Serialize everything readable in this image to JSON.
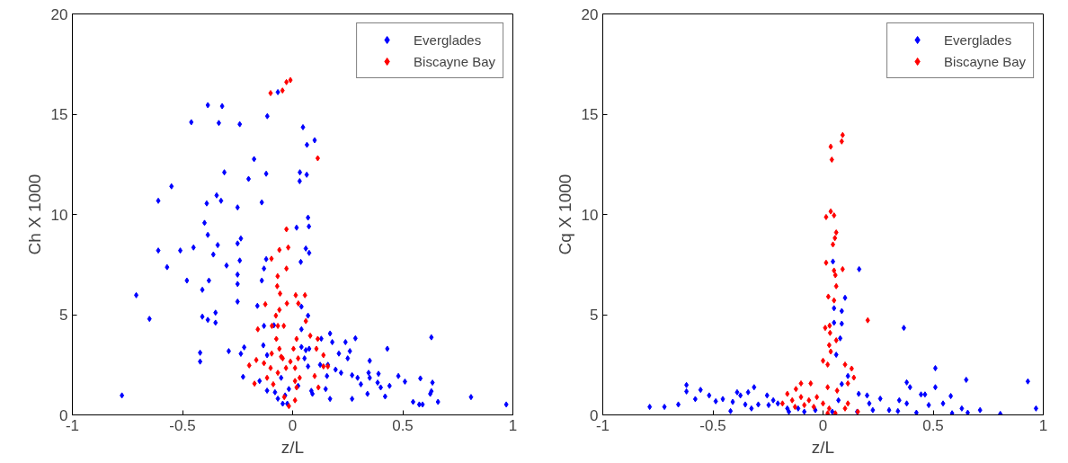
{
  "chart_data": [
    {
      "type": "scatter",
      "xlabel": "z/L",
      "ylabel": "Ch X 1000",
      "xlim": [
        -1,
        1
      ],
      "ylim": [
        0,
        20
      ],
      "xticks": [
        -1,
        -0.5,
        0,
        0.5,
        1
      ],
      "yticks": [
        0,
        5,
        10,
        15,
        20
      ],
      "grid": false,
      "legend": "top right",
      "marker": "diamond",
      "series": [
        {
          "name": "Everglades",
          "color": "#0000ff",
          "x": [
            -0.775,
            -0.71,
            -0.65,
            -0.61,
            -0.61,
            -0.57,
            -0.55,
            -0.51,
            -0.48,
            -0.46,
            -0.45,
            -0.42,
            -0.42,
            -0.41,
            -0.41,
            -0.4,
            -0.39,
            -0.385,
            -0.385,
            -0.385,
            -0.38,
            -0.36,
            -0.35,
            -0.35,
            -0.345,
            -0.34,
            -0.335,
            -0.325,
            -0.32,
            -0.31,
            -0.3,
            -0.29,
            -0.25,
            -0.25,
            -0.25,
            -0.25,
            -0.25,
            -0.24,
            -0.24,
            -0.235,
            -0.235,
            -0.225,
            -0.22,
            -0.2,
            -0.175,
            -0.16,
            -0.14,
            -0.14,
            -0.13,
            -0.12,
            -0.12,
            -0.115,
            -0.067,
            0.018,
            0.032,
            0.033,
            0.047,
            0.065,
            0.1,
            0.064,
            0.07,
            0.074,
            0.06,
            0.075,
            0.037,
            0.04,
            0.07,
            0.17,
            0.285,
            0.43,
            0.63,
            0.35,
            0.18,
            0.24,
            0.21,
            0.26,
            0.25,
            0.13,
            0.125,
            0.16,
            0.195,
            0.22,
            0.156,
            0.27,
            0.295,
            0.31,
            0.345,
            0.35,
            0.39,
            0.386,
            0.4,
            0.44,
            0.48,
            0.51,
            0.58,
            0.635,
            0.63,
            0.625,
            0.66,
            0.547,
            0.575,
            0.59,
            0.81,
            0.97,
            0.42,
            0.34,
            0.27,
            0.17,
            0.15,
            0.09,
            0.085,
            0.07,
            0.04,
            0.06,
            -0.133,
            -0.116,
            -0.15,
            -0.116,
            -0.08,
            -0.067,
            -0.045,
            -0.024,
            -0.034,
            -0.052,
            0.04,
            0.054,
            0.075,
            0.025,
            -0.017,
            -0.085,
            -0.13
          ],
          "values": [
            0.97,
            5.97,
            4.79,
            10.68,
            8.2,
            7.37,
            11.4,
            8.2,
            6.7,
            14.6,
            8.35,
            3.1,
            2.66,
            6.24,
            4.9,
            9.58,
            10.55,
            15.45,
            8.98,
            4.74,
            6.7,
            8.0,
            4.6,
            5.1,
            10.95,
            8.47,
            14.56,
            10.68,
            15.4,
            12.1,
            7.45,
            3.18,
            10.35,
            8.55,
            7.0,
            6.53,
            5.65,
            14.5,
            7.7,
            8.8,
            3.05,
            1.9,
            3.37,
            11.77,
            12.76,
            5.44,
            10.6,
            6.7,
            7.3,
            12.03,
            7.77,
            14.9,
            16.1,
            9.34,
            11.66,
            12.1,
            14.35,
            13.47,
            13.7,
            11.98,
            9.84,
            9.4,
            8.3,
            8.08,
            7.63,
            5.4,
            4.95,
            4.06,
            3.82,
            3.3,
            3.87,
            2.7,
            3.63,
            3.63,
            3.06,
            3.18,
            2.82,
            3.8,
            2.5,
            2.5,
            2.26,
            2.1,
            1.94,
            1.98,
            1.85,
            1.53,
            2.1,
            1.85,
            2.05,
            1.61,
            1.37,
            1.45,
            1.94,
            1.66,
            1.82,
            1.61,
            1.18,
            1.05,
            0.65,
            0.65,
            0.52,
            0.52,
            0.89,
            0.52,
            0.92,
            1.05,
            0.8,
            0.8,
            1.29,
            1.05,
            1.2,
            2.42,
            4.27,
            3.23,
            3.47,
            2.98,
            1.69,
            1.21,
            1.13,
            0.81,
            0.56,
            0.56,
            0.97,
            1.85,
            3.39,
            2.82,
            3.3,
            1.45,
            1.29,
            4.47,
            4.44
          ]
        },
        {
          "name": "Biscayne Bay",
          "color": "#ff0000",
          "x": [
            -0.1,
            -0.046,
            -0.028,
            -0.01,
            0.114,
            -0.028,
            -0.06,
            -0.02,
            -0.096,
            -0.028,
            -0.068,
            -0.07,
            -0.057,
            0.014,
            0.056,
            0.026,
            -0.124,
            -0.06,
            -0.026,
            -0.076,
            -0.158,
            -0.094,
            -0.04,
            0.06,
            0.114,
            -0.197,
            -0.173,
            -0.165,
            -0.13,
            -0.095,
            -0.074,
            -0.06,
            -0.045,
            -0.1,
            -0.067,
            -0.116,
            -0.088,
            -0.03,
            -0.01,
            0.011,
            0.025,
            0.032,
            0.018,
            0.011,
            -0.017,
            -0.038,
            0.004,
            0.018,
            0.08,
            0.108,
            0.14,
            0.14,
            0.16,
            0.1,
            0.117,
            0.011,
            -0.067,
            -0.052
          ],
          "values": [
            16.05,
            16.18,
            16.6,
            16.7,
            12.8,
            9.26,
            8.23,
            8.35,
            7.79,
            7.3,
            6.92,
            6.42,
            6.05,
            5.97,
            5.97,
            5.56,
            5.52,
            5.24,
            5.56,
            4.95,
            4.27,
            4.44,
            4.44,
            4.68,
            3.79,
            2.47,
            1.56,
            2.74,
            2.58,
            3.06,
            3.79,
            3.3,
            2.82,
            2.34,
            2.1,
            1.85,
            1.53,
            2.34,
            2.66,
            2.34,
            2.82,
            1.85,
            1.37,
            0.73,
            0.44,
            0.89,
            3.3,
            3.79,
            3.95,
            3.3,
            2.98,
            2.42,
            2.42,
            1.94,
            1.37,
            1.69,
            4.44,
            2.9
          ]
        }
      ]
    },
    {
      "type": "scatter",
      "xlabel": "z/L",
      "ylabel": "Cq X 1000",
      "xlim": [
        -1,
        1
      ],
      "ylim": [
        0,
        20
      ],
      "xticks": [
        -1,
        -0.5,
        0,
        0.5,
        1
      ],
      "yticks": [
        0,
        5,
        10,
        15,
        20
      ],
      "grid": false,
      "legend": "top right",
      "marker": "diamond",
      "series": [
        {
          "name": "Everglades",
          "color": "#0000ff",
          "x": [
            -0.787,
            -0.72,
            -0.657,
            -0.62,
            -0.62,
            -0.58,
            -0.556,
            -0.517,
            -0.487,
            -0.455,
            -0.42,
            -0.41,
            -0.39,
            -0.375,
            -0.353,
            -0.34,
            -0.325,
            -0.313,
            -0.294,
            -0.254,
            -0.247,
            -0.226,
            -0.205,
            -0.162,
            -0.113,
            -0.035,
            0.045,
            0.164,
            0.1,
            0.05,
            0.085,
            0.085,
            0.05,
            0.078,
            0.06,
            0.367,
            0.51,
            0.65,
            0.93,
            0.38,
            0.395,
            0.51,
            0.445,
            0.463,
            0.58,
            0.48,
            0.545,
            0.346,
            0.38,
            0.63,
            0.713,
            0.805,
            0.967,
            0.424,
            0.586,
            0.657,
            0.34,
            0.3,
            0.26,
            0.226,
            0.2,
            0.162,
            0.155,
            0.113,
            0.085,
            0.07,
            0.042,
            0.21,
            -0.155,
            -0.085
          ],
          "values": [
            0.4,
            0.4,
            0.52,
            1.49,
            1.17,
            0.79,
            1.25,
            0.97,
            0.68,
            0.79,
            0.19,
            0.65,
            1.13,
            0.97,
            0.52,
            1.13,
            0.32,
            1.38,
            0.52,
            0.97,
            0.49,
            0.73,
            0.57,
            0.32,
            0.32,
            0.24,
            7.65,
            7.27,
            5.84,
            5.32,
            5.18,
            4.55,
            4.6,
            3.82,
            3.0,
            4.34,
            2.33,
            1.75,
            1.67,
            1.62,
            1.38,
            1.38,
            1.02,
            1.02,
            0.94,
            0.49,
            0.57,
            0.73,
            0.57,
            0.32,
            0.24,
            0.05,
            0.32,
            0.11,
            0.08,
            0.11,
            0.19,
            0.24,
            0.81,
            0.24,
            0.97,
            1.05,
            0.16,
            1.94,
            1.54,
            0.73,
            0.16,
            0.57,
            0.16,
            0.16
          ]
        },
        {
          "name": "Biscayne Bay",
          "color": "#ff0000",
          "x": [
            0.089,
            0.085,
            0.035,
            0.04,
            0.035,
            0.05,
            0.014,
            0.06,
            0.054,
            0.045,
            0.014,
            0.089,
            0.05,
            0.056,
            0.06,
            0.024,
            0.05,
            0.203,
            0.01,
            0.03,
            0.032,
            0.028,
            0.06,
            0.035,
            0,
            0.021,
            0.1,
            0.13,
            0.14,
            0.113,
            0.064,
            0.021,
            -0.056,
            -0.1,
            -0.123,
            -0.162,
            -0.184,
            -0.14,
            -0.1,
            -0.064,
            -0.028,
            0,
            0.028,
            -0.042,
            -0.085,
            -0.127,
            0.113,
            0.1,
            0.158,
            0.021,
            0.056
          ],
          "values": [
            13.96,
            13.64,
            13.38,
            12.73,
            10.15,
            9.95,
            9.87,
            9.1,
            8.82,
            8.5,
            7.59,
            7.27,
            7.2,
            6.97,
            6.42,
            5.9,
            5.71,
            4.72,
            4.34,
            4.45,
            4.09,
            3.48,
            3.72,
            3.16,
            2.7,
            2.51,
            2.51,
            2.31,
            1.86,
            1.57,
            1.21,
            1.38,
            1.57,
            1.57,
            1.29,
            1.05,
            0.57,
            0.73,
            0.89,
            0.73,
            0.89,
            0.57,
            0.32,
            0.4,
            0.49,
            0.4,
            0.57,
            0.32,
            0.16,
            0.08,
            0.08
          ]
        }
      ]
    }
  ]
}
